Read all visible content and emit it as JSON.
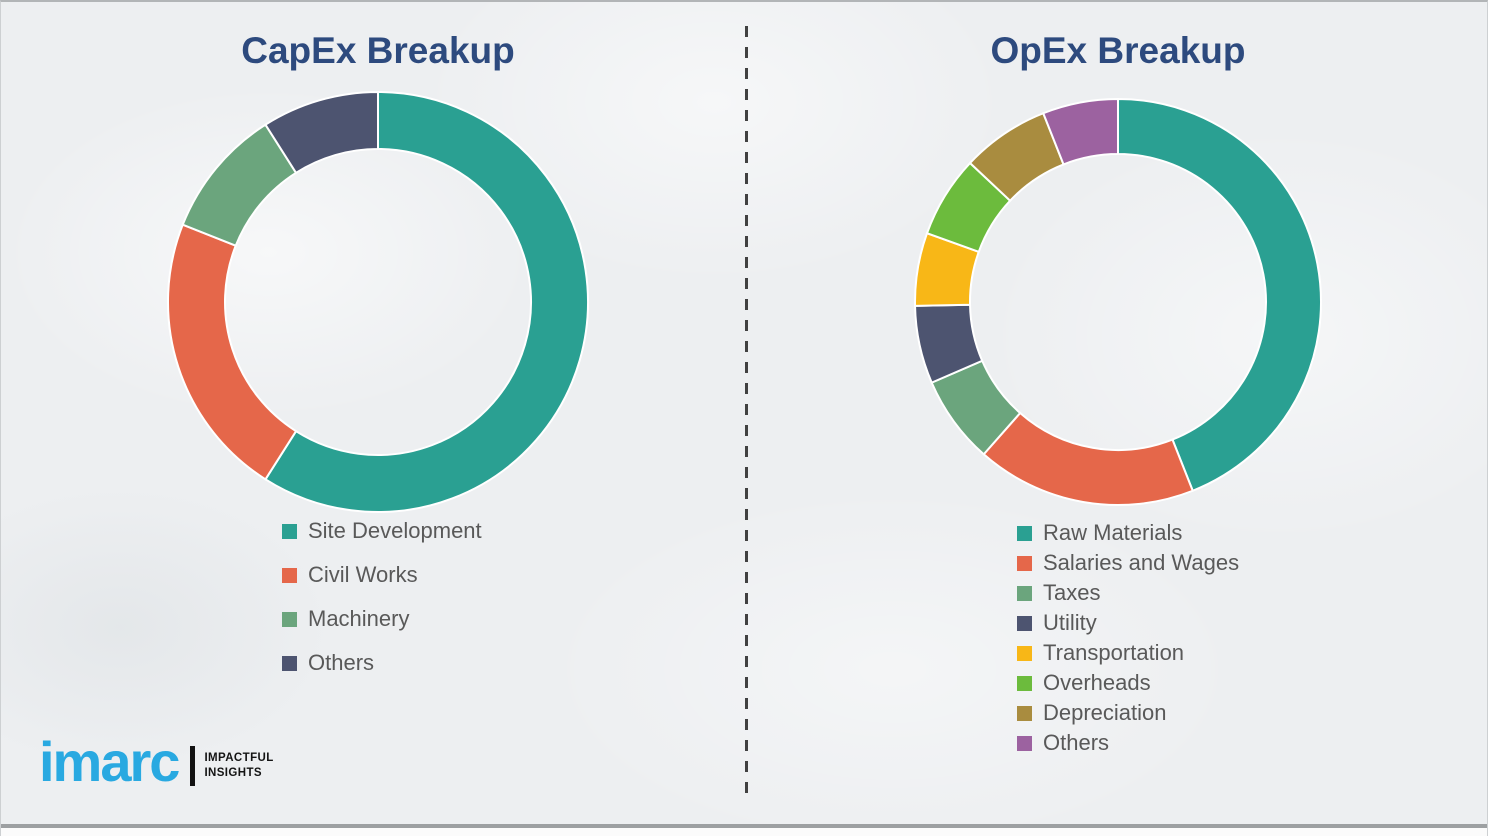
{
  "page": {
    "background_color": "#edeff1",
    "divider_style": "vertical dashed line between the two charts",
    "divider_color": "#414141",
    "bottom_rule_color": "#9da0a2"
  },
  "chart_data": [
    {
      "type": "pie",
      "subtype": "donut",
      "title": "CapEx Breakup",
      "categories": [
        "Site Development",
        "Civil Works",
        "Machinery",
        "Others"
      ],
      "values": [
        59,
        22,
        10,
        9
      ],
      "colors": [
        "#2aa092",
        "#e5674a",
        "#6ba57d",
        "#4d5470"
      ],
      "start_angle_deg": 0,
      "direction": "clockwise",
      "segment_gap_color": "#ffffff",
      "legend_position": "below-left",
      "data_labels_shown": false
    },
    {
      "type": "pie",
      "subtype": "donut",
      "title": "OpEx Breakup",
      "categories": [
        "Raw Materials",
        "Salaries and Wages",
        "Taxes",
        "Utility",
        "Transportation",
        "Overheads",
        "Depreciation",
        "Others"
      ],
      "values": [
        44,
        17.5,
        7,
        6.2,
        5.8,
        6.5,
        7,
        6
      ],
      "colors": [
        "#2aa092",
        "#e5674a",
        "#6ba57d",
        "#4d5470",
        "#f8b717",
        "#6cbb3d",
        "#a98c3f",
        "#9c62a0"
      ],
      "start_angle_deg": 0,
      "direction": "clockwise",
      "segment_gap_color": "#ffffff",
      "legend_position": "below-left",
      "data_labels_shown": false
    }
  ],
  "titles": {
    "title_color": "#2d4a7e",
    "legend_text_color": "#595959"
  },
  "logo": {
    "brand": "imarc",
    "brand_color": "#29a9e1",
    "tagline_line1": "IMPACTFUL",
    "tagline_line2": "INSIGHTS"
  }
}
